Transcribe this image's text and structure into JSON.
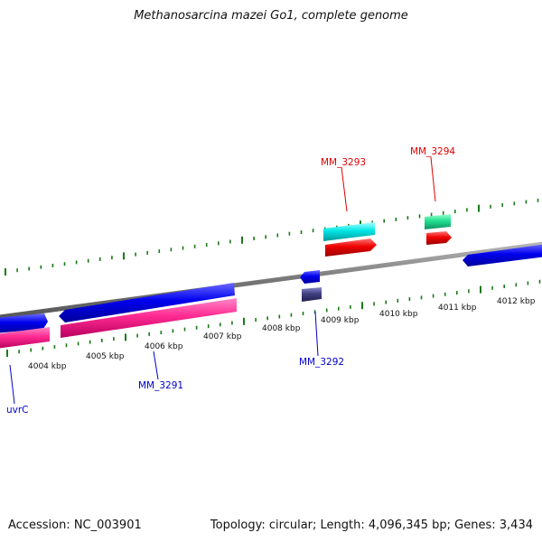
{
  "title": "Methanosarcina mazei Go1, complete genome",
  "footer": {
    "accession": "Accession: NC_003901",
    "summary": "Topology: circular; Length: 4,096,345 bp; Genes: 3,434"
  },
  "colors": {
    "backbone": "#808080",
    "tick": "#1a7a1a",
    "forward_cds": "#ff0000",
    "reverse_cds": "#0000ee",
    "forward_gene": "#00e6e6",
    "reverse_gene": "#ff3399",
    "rna": "#20e090",
    "misc": "#404080",
    "label_forward": "#dd0000",
    "label_reverse": "#0000cc"
  },
  "ticks": [
    {
      "label": "4004 kbp"
    },
    {
      "label": "4005 kbp"
    },
    {
      "label": "4006 kbp"
    },
    {
      "label": "4007 kbp"
    },
    {
      "label": "4008 kbp"
    },
    {
      "label": "4009 kbp"
    },
    {
      "label": "4010 kbp"
    },
    {
      "label": "4011 kbp"
    },
    {
      "label": "4012 kbp"
    }
  ],
  "gene_labels": [
    {
      "name": "MM_3293",
      "strand": "forward"
    },
    {
      "name": "MM_3294",
      "strand": "forward"
    },
    {
      "name": "MM_3292",
      "strand": "reverse"
    },
    {
      "name": "MM_3291",
      "strand": "reverse"
    },
    {
      "name": "uvrC",
      "strand": "reverse"
    }
  ]
}
